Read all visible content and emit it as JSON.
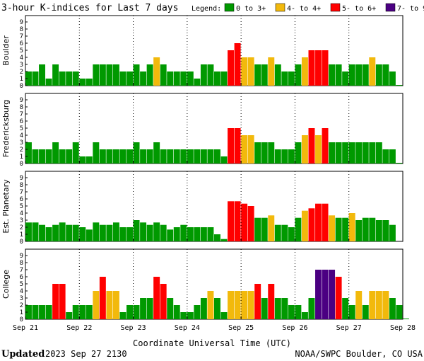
{
  "title": "3-hour K-indices for Last 7 days",
  "legend": {
    "label": "Legend:",
    "items": [
      {
        "text": "0 to 3+",
        "color": "#009900"
      },
      {
        "text": "4- to 4+",
        "color": "#f2b90c"
      },
      {
        "text": "5- to 6+",
        "color": "#ff0000"
      },
      {
        "text": "7- to 9",
        "color": "#4b0082"
      }
    ]
  },
  "x_axis_label": "Coordinate Universal Time (UTC)",
  "footer": {
    "updated_label": "Updated",
    "updated_value": "2023 Sep 27 2130",
    "source": "NOAA/SWPC Boulder, CO USA"
  },
  "chart_data": [
    {
      "type": "bar",
      "station": "Boulder",
      "ylim": [
        0,
        9
      ],
      "yticks": [
        0,
        1,
        2,
        3,
        4,
        5,
        6,
        7,
        8,
        9
      ],
      "xticks": [
        "Sep 21",
        "Sep 22",
        "Sep 23",
        "Sep 24",
        "Sep 25",
        "Sep 26",
        "Sep 27",
        "Sep 28"
      ],
      "values": [
        2,
        2,
        3,
        1,
        3,
        2,
        2,
        2,
        1,
        1,
        3,
        3,
        3,
        3,
        2,
        2,
        3,
        2,
        3,
        4,
        3,
        2,
        2,
        2,
        2,
        1,
        3,
        3,
        2,
        2,
        5,
        6,
        4,
        4,
        3,
        3,
        4,
        3,
        2,
        2,
        3,
        4,
        5,
        5,
        5,
        3,
        3,
        2,
        3,
        3,
        3,
        4,
        3,
        3,
        2,
        0.1
      ]
    },
    {
      "type": "bar",
      "station": "Fredericksburg",
      "ylim": [
        0,
        9
      ],
      "yticks": [
        0,
        1,
        2,
        3,
        4,
        5,
        6,
        7,
        8,
        9
      ],
      "xticks": [
        "Sep 21",
        "Sep 22",
        "Sep 23",
        "Sep 24",
        "Sep 25",
        "Sep 26",
        "Sep 27",
        "Sep 28"
      ],
      "values": [
        3,
        2,
        2,
        2,
        3,
        2,
        2,
        3,
        1,
        1,
        3,
        2,
        2,
        2,
        2,
        2,
        3,
        2,
        2,
        3,
        2,
        2,
        2,
        2,
        2,
        2,
        2,
        2,
        2,
        1,
        5,
        5,
        4,
        4,
        3,
        3,
        3,
        2,
        2,
        2,
        3,
        4,
        5,
        4,
        5,
        3,
        3,
        3,
        3,
        3,
        3,
        3,
        3,
        2,
        2,
        0.1
      ]
    },
    {
      "type": "bar",
      "station": "Est. Planetary",
      "ylim": [
        0,
        9
      ],
      "yticks": [
        0,
        1,
        2,
        3,
        4,
        5,
        6,
        7,
        8,
        9
      ],
      "xticks": [
        "Sep 21",
        "Sep 22",
        "Sep 23",
        "Sep 24",
        "Sep 25",
        "Sep 26",
        "Sep 27",
        "Sep 28"
      ],
      "values": [
        2.67,
        2.67,
        2.33,
        2,
        2.33,
        2.67,
        2.33,
        2.33,
        2,
        1.67,
        2.67,
        2.33,
        2.33,
        2.67,
        2,
        2,
        3,
        2.67,
        2.33,
        2.67,
        2.33,
        1.67,
        2,
        2.33,
        2,
        2,
        2,
        2,
        1,
        0.33,
        5.67,
        5.67,
        5.33,
        5,
        3.33,
        3.33,
        3.67,
        2.33,
        2.33,
        2,
        3.33,
        4.33,
        4.67,
        5.33,
        5.33,
        3.67,
        3.33,
        3.33,
        4,
        3,
        3.33,
        3.33,
        3,
        3,
        2.33
      ]
    },
    {
      "type": "bar",
      "station": "College",
      "ylim": [
        0,
        9
      ],
      "yticks": [
        0,
        1,
        2,
        3,
        4,
        5,
        6,
        7,
        8,
        9
      ],
      "xticks": [
        "Sep 21",
        "Sep 22",
        "Sep 23",
        "Sep 24",
        "Sep 25",
        "Sep 26",
        "Sep 27",
        "Sep 28"
      ],
      "values": [
        2,
        2,
        2,
        2,
        5,
        5,
        1,
        2,
        2,
        2,
        4,
        6,
        4,
        4,
        1,
        2,
        2,
        3,
        3,
        6,
        5,
        3,
        2,
        1,
        1,
        2,
        3,
        4,
        3,
        1,
        4,
        4,
        4,
        4,
        5,
        3,
        5,
        3,
        3,
        2,
        2,
        1,
        3,
        7,
        7,
        7,
        6,
        3,
        2,
        4,
        2,
        4,
        4,
        4,
        3,
        2,
        0.1
      ]
    }
  ]
}
